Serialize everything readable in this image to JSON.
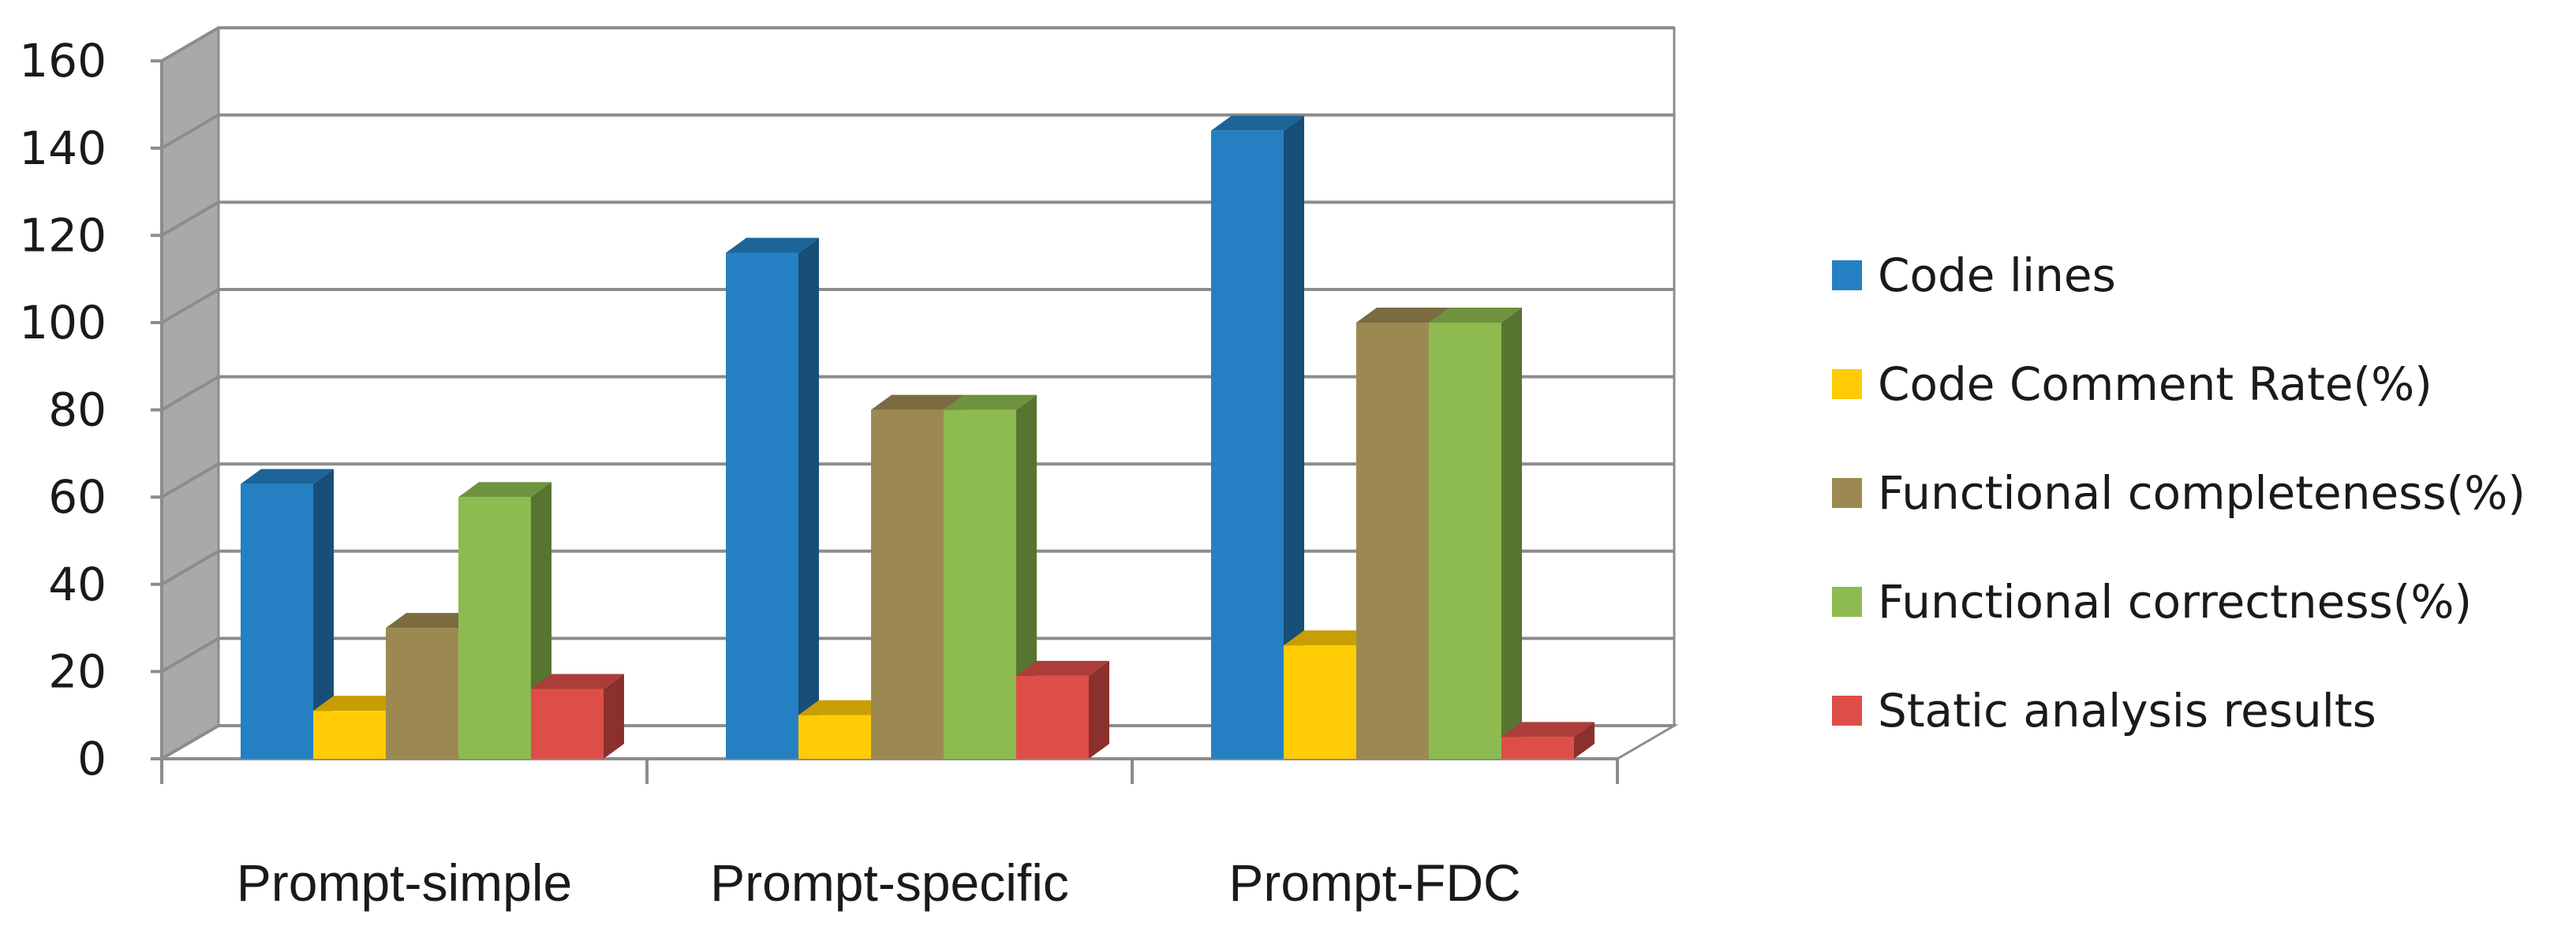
{
  "chart_data": {
    "type": "bar",
    "title": "",
    "xlabel": "",
    "ylabel": "",
    "ylim": [
      0,
      160
    ],
    "yticks": [
      0,
      20,
      40,
      60,
      80,
      100,
      120,
      140,
      160
    ],
    "categories": [
      "Prompt-simple",
      "Prompt-specific",
      "Prompt-FDC"
    ],
    "series": [
      {
        "name": "Code lines",
        "values": [
          63,
          116,
          144
        ],
        "color": "#2580C3"
      },
      {
        "name": "Code Comment Rate(%)",
        "values": [
          11,
          10,
          26
        ],
        "color": "#FFCB05"
      },
      {
        "name": "Functional completeness(%)",
        "values": [
          30,
          80,
          100
        ],
        "color": "#9C8952"
      },
      {
        "name": "Functional correctness(%)",
        "values": [
          60,
          80,
          100
        ],
        "color": "#8DBB4F"
      },
      {
        "name": "Static analysis results",
        "values": [
          16,
          19,
          5
        ],
        "color": "#DE4E49"
      }
    ],
    "grid": true,
    "style": "3d-clustered-column",
    "legend_position": "right"
  }
}
